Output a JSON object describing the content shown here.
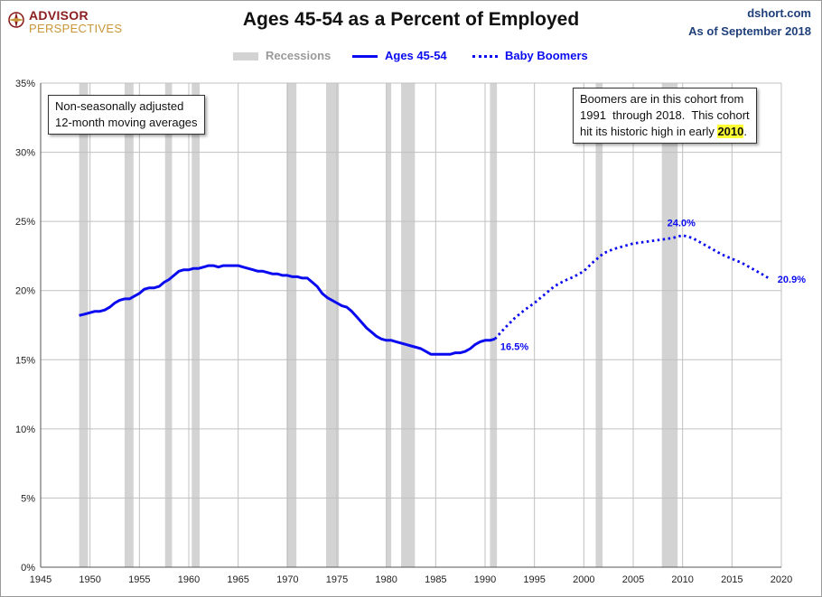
{
  "header": {
    "logo_line1": "ADVISOR",
    "logo_line2": "PERSPECTIVES",
    "title": "Ages 45-54 as a Percent of Employed",
    "source": "dshort.com",
    "as_of": "As of September 2018"
  },
  "legend": {
    "recessions": "Recessions",
    "ages": "Ages 45-54",
    "boomers": "Baby Boomers"
  },
  "notes": {
    "left": [
      "Non-seasonally adjusted",
      "12-month moving averages"
    ],
    "right_line1": "Boomers are in this cohort from",
    "right_line2": "1991  through 2018.  This cohort",
    "right_line3_pre": "hit its historic high in early ",
    "right_line3_hl": "2010",
    "right_line3_post": "."
  },
  "colors": {
    "series": "#0a0af0",
    "recession": "#d3d3d3",
    "grid": "#c0c0c0",
    "axis_text": "#222222"
  },
  "chart_data": {
    "type": "line",
    "title": "Ages 45-54 as a Percent of Employed",
    "xlim": [
      1945,
      2020
    ],
    "ylim": [
      0,
      35
    ],
    "x_ticks": [
      1945,
      1950,
      1955,
      1960,
      1965,
      1970,
      1975,
      1980,
      1985,
      1990,
      1995,
      2000,
      2005,
      2010,
      2015,
      2020
    ],
    "y_ticks": [
      0,
      5,
      10,
      15,
      20,
      25,
      30,
      35
    ],
    "y_tick_labels": [
      "0%",
      "5%",
      "10%",
      "15%",
      "20%",
      "25%",
      "30%",
      "35%"
    ],
    "grid": true,
    "recessions": [
      [
        1948.9,
        1949.8
      ],
      [
        1953.5,
        1954.4
      ],
      [
        1957.6,
        1958.3
      ],
      [
        1960.3,
        1961.1
      ],
      [
        1969.9,
        1970.9
      ],
      [
        1973.9,
        1975.2
      ],
      [
        1980.0,
        1980.5
      ],
      [
        1981.5,
        1982.9
      ],
      [
        1990.5,
        1991.2
      ],
      [
        2001.2,
        2001.9
      ],
      [
        2007.9,
        2009.5
      ]
    ],
    "series": [
      {
        "name": "Ages 45-54",
        "style": "solid",
        "points": [
          [
            1948.9,
            18.2
          ],
          [
            1949.5,
            18.3
          ],
          [
            1950.0,
            18.4
          ],
          [
            1950.5,
            18.5
          ],
          [
            1951.0,
            18.5
          ],
          [
            1951.5,
            18.6
          ],
          [
            1952.0,
            18.8
          ],
          [
            1952.5,
            19.1
          ],
          [
            1953.0,
            19.3
          ],
          [
            1953.5,
            19.4
          ],
          [
            1954.0,
            19.4
          ],
          [
            1954.5,
            19.6
          ],
          [
            1955.0,
            19.8
          ],
          [
            1955.5,
            20.1
          ],
          [
            1956.0,
            20.2
          ],
          [
            1956.5,
            20.2
          ],
          [
            1957.0,
            20.3
          ],
          [
            1957.5,
            20.6
          ],
          [
            1958.0,
            20.8
          ],
          [
            1958.5,
            21.1
          ],
          [
            1959.0,
            21.4
          ],
          [
            1959.5,
            21.5
          ],
          [
            1960.0,
            21.5
          ],
          [
            1960.5,
            21.6
          ],
          [
            1961.0,
            21.6
          ],
          [
            1961.5,
            21.7
          ],
          [
            1962.0,
            21.8
          ],
          [
            1962.5,
            21.8
          ],
          [
            1963.0,
            21.7
          ],
          [
            1963.5,
            21.8
          ],
          [
            1964.0,
            21.8
          ],
          [
            1964.5,
            21.8
          ],
          [
            1965.0,
            21.8
          ],
          [
            1965.5,
            21.7
          ],
          [
            1966.0,
            21.6
          ],
          [
            1966.5,
            21.5
          ],
          [
            1967.0,
            21.4
          ],
          [
            1967.5,
            21.4
          ],
          [
            1968.0,
            21.3
          ],
          [
            1968.5,
            21.2
          ],
          [
            1969.0,
            21.2
          ],
          [
            1969.5,
            21.1
          ],
          [
            1970.0,
            21.1
          ],
          [
            1970.5,
            21.0
          ],
          [
            1971.0,
            21.0
          ],
          [
            1971.5,
            20.9
          ],
          [
            1972.0,
            20.9
          ],
          [
            1972.5,
            20.6
          ],
          [
            1973.0,
            20.3
          ],
          [
            1973.5,
            19.8
          ],
          [
            1974.0,
            19.5
          ],
          [
            1974.5,
            19.3
          ],
          [
            1975.0,
            19.1
          ],
          [
            1975.5,
            18.9
          ],
          [
            1976.0,
            18.8
          ],
          [
            1976.5,
            18.5
          ],
          [
            1977.0,
            18.1
          ],
          [
            1977.5,
            17.7
          ],
          [
            1978.0,
            17.3
          ],
          [
            1978.5,
            17.0
          ],
          [
            1979.0,
            16.7
          ],
          [
            1979.5,
            16.5
          ],
          [
            1980.0,
            16.4
          ],
          [
            1980.5,
            16.4
          ],
          [
            1981.0,
            16.3
          ],
          [
            1981.5,
            16.2
          ],
          [
            1982.0,
            16.1
          ],
          [
            1982.5,
            16.0
          ],
          [
            1983.0,
            15.9
          ],
          [
            1983.5,
            15.8
          ],
          [
            1984.0,
            15.6
          ],
          [
            1984.5,
            15.4
          ],
          [
            1985.0,
            15.4
          ],
          [
            1985.5,
            15.4
          ],
          [
            1986.0,
            15.4
          ],
          [
            1986.5,
            15.4
          ],
          [
            1987.0,
            15.5
          ],
          [
            1987.5,
            15.5
          ],
          [
            1988.0,
            15.6
          ],
          [
            1988.5,
            15.8
          ],
          [
            1989.0,
            16.1
          ],
          [
            1989.5,
            16.3
          ],
          [
            1990.0,
            16.4
          ],
          [
            1990.5,
            16.4
          ],
          [
            1991.0,
            16.5
          ]
        ]
      },
      {
        "name": "Baby Boomers",
        "style": "dotted",
        "points": [
          [
            1991.0,
            16.5
          ],
          [
            1992.0,
            17.3
          ],
          [
            1993.0,
            18.0
          ],
          [
            1994.0,
            18.6
          ],
          [
            1995.0,
            19.1
          ],
          [
            1996.0,
            19.7
          ],
          [
            1997.0,
            20.3
          ],
          [
            1998.0,
            20.7
          ],
          [
            1999.0,
            21.0
          ],
          [
            2000.0,
            21.4
          ],
          [
            2001.0,
            22.1
          ],
          [
            2002.0,
            22.7
          ],
          [
            2003.0,
            23.0
          ],
          [
            2004.0,
            23.2
          ],
          [
            2005.0,
            23.4
          ],
          [
            2006.0,
            23.5
          ],
          [
            2007.0,
            23.6
          ],
          [
            2008.0,
            23.7
          ],
          [
            2009.0,
            23.8
          ],
          [
            2010.0,
            24.0
          ],
          [
            2011.0,
            23.8
          ],
          [
            2012.0,
            23.4
          ],
          [
            2013.0,
            23.0
          ],
          [
            2014.0,
            22.6
          ],
          [
            2015.0,
            22.3
          ],
          [
            2016.0,
            22.0
          ],
          [
            2017.0,
            21.6
          ],
          [
            2018.0,
            21.2
          ],
          [
            2018.7,
            20.9
          ]
        ]
      }
    ],
    "annotations": [
      {
        "text": "16.5%",
        "x": 1991.0,
        "y": 16.5
      },
      {
        "text": "24.0%",
        "x": 2010.0,
        "y": 24.0
      },
      {
        "text": "20.9%",
        "x": 2018.7,
        "y": 20.9
      }
    ]
  }
}
